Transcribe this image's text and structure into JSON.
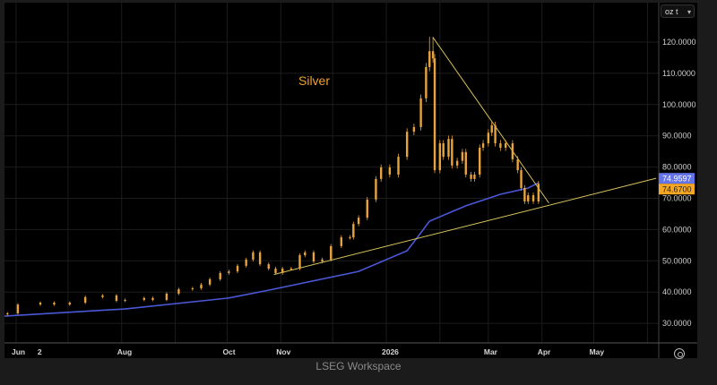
{
  "app": {
    "footer": "LSEG Workspace"
  },
  "unit_selector": {
    "value": "oz t",
    "icon": "chevron-down-icon"
  },
  "settings_icon": "settings-icon",
  "colors": {
    "candle": "#e8a33c",
    "moving_average": "#4a58d8",
    "trendline": "#d8c25a",
    "title": "#f0a030",
    "ma_label_bg": "#6473e8",
    "last_label_bg": "#f5a623"
  },
  "chart_data": {
    "type": "candlestick",
    "title": "Silver",
    "xlabel": "",
    "ylabel": "",
    "ylim": [
      23.7,
      131.2
    ],
    "xlim": [
      "2025-05-25",
      "2026-06-06"
    ],
    "grid": true,
    "y_ticks": [
      "30.0000",
      "40.0000",
      "50.0000",
      "60.0000",
      "70.0000",
      "80.0000",
      "90.0000",
      "100.0000",
      "110.0000",
      "120.0000"
    ],
    "x_ticks": [
      {
        "label": "Jun",
        "date": "2025-06-01"
      },
      {
        "label": "2",
        "date": "2025-06-16"
      },
      {
        "label": "Aug",
        "date": "2025-08-01"
      },
      {
        "label": "Oct",
        "date": "2025-10-01"
      },
      {
        "label": "Nov",
        "date": "2025-11-01"
      },
      {
        "label": "2026",
        "date": "2026-01-01"
      },
      {
        "label": "Mar",
        "date": "2026-03-01"
      },
      {
        "label": "Apr",
        "date": "2026-04-01"
      },
      {
        "label": "May",
        "date": "2026-05-01"
      }
    ],
    "price_series": {
      "dates": [
        "2025-05-27",
        "2025-06-02",
        "2025-06-15",
        "2025-06-23",
        "2025-07-02",
        "2025-07-11",
        "2025-07-21",
        "2025-07-29",
        "2025-08-03",
        "2025-08-14",
        "2025-08-19",
        "2025-08-27",
        "2025-09-03",
        "2025-09-11",
        "2025-09-16",
        "2025-09-21",
        "2025-09-27",
        "2025-10-02",
        "2025-10-07",
        "2025-10-12",
        "2025-10-16",
        "2025-10-20",
        "2025-10-25",
        "2025-10-29",
        "2025-11-02",
        "2025-11-07",
        "2025-11-12",
        "2025-11-15",
        "2025-11-20",
        "2025-11-25",
        "2025-11-30",
        "2025-12-06",
        "2025-12-11",
        "2025-12-13",
        "2025-12-16",
        "2025-12-21",
        "2025-12-26",
        "2025-12-29",
        "2026-01-03",
        "2026-01-08",
        "2026-01-13",
        "2026-01-17",
        "2026-01-21",
        "2026-01-24",
        "2026-01-26",
        "2026-01-28",
        "2026-01-29",
        "2026-02-01",
        "2026-02-03",
        "2026-02-06",
        "2026-02-08",
        "2026-02-11",
        "2026-02-14",
        "2026-02-16",
        "2026-02-19",
        "2026-02-21",
        "2026-02-24",
        "2026-02-26",
        "2026-03-01",
        "2026-03-03",
        "2026-03-05",
        "2026-03-08",
        "2026-03-11",
        "2026-03-15",
        "2026-03-18",
        "2026-03-20",
        "2026-03-22",
        "2026-03-24",
        "2026-03-27",
        "2026-03-30"
      ],
      "close": [
        33.2,
        36.0,
        36.6,
        36.0,
        36.6,
        38.4,
        38.9,
        37.2,
        37.5,
        38.1,
        37.5,
        39.5,
        40.9,
        41.2,
        42.4,
        44.1,
        46.1,
        46.6,
        48.4,
        50.4,
        52.7,
        48.9,
        47.5,
        46.1,
        47.5,
        47.5,
        51.8,
        52.7,
        49.8,
        50.4,
        54.7,
        57.5,
        57.5,
        61.8,
        63.8,
        69.6,
        76.2,
        79.9,
        77.6,
        83.3,
        91.3,
        92.8,
        102.0,
        112.0,
        117.1,
        114.8,
        79.0,
        87.6,
        83.3,
        89.0,
        80.5,
        82.0,
        84.8,
        77.6,
        76.2,
        77.6,
        86.2,
        87.6,
        91.0,
        93.4,
        87.6,
        86.2,
        87.6,
        82.5,
        79.0,
        73.3,
        69.0,
        71.0,
        69.0,
        74.67
      ],
      "peak_high": {
        "date": "2026-01-27",
        "value": 121.7
      },
      "last_value": "74.6700"
    },
    "moving_average": {
      "dates": [
        "2025-05-25",
        "2025-08-03",
        "2025-10-02",
        "2025-10-25",
        "2025-12-16",
        "2026-01-13",
        "2026-01-19",
        "2026-01-26",
        "2026-02-16",
        "2026-03-08",
        "2026-03-24",
        "2026-03-30"
      ],
      "values": [
        32.3,
        34.6,
        38.1,
        40.6,
        46.6,
        53.2,
        57.5,
        62.7,
        67.6,
        71.3,
        73.3,
        74.96
      ],
      "last_value": "74.9597"
    },
    "trendlines": [
      {
        "name": "descending-resistance",
        "points": [
          [
            "2026-01-28",
            121.5
          ],
          [
            "2026-04-05",
            68.5
          ]
        ]
      },
      {
        "name": "ascending-support",
        "points": [
          [
            "2025-10-28",
            45.6
          ],
          [
            "2026-06-06",
            76.4
          ]
        ]
      }
    ]
  }
}
